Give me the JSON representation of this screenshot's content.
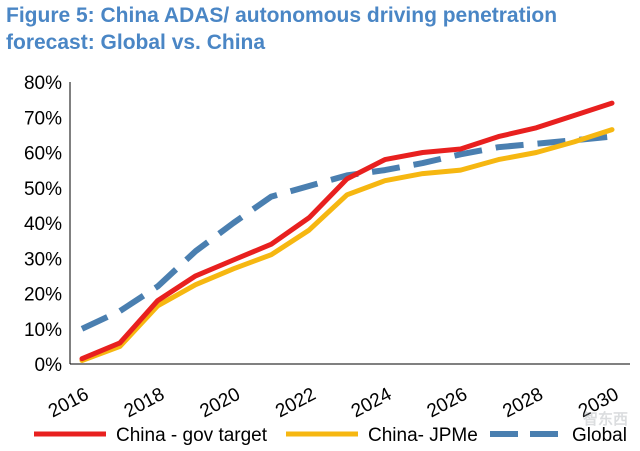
{
  "chart_data": {
    "type": "line",
    "title": "Figure 5: China ADAS/ autonomous driving penetration forecast: Global vs. China",
    "xlabel": "",
    "ylabel": "",
    "x": [
      2016,
      2017,
      2018,
      2019,
      2020,
      2021,
      2022,
      2023,
      2024,
      2025,
      2026,
      2027,
      2028,
      2029,
      2030
    ],
    "x_tick_labels": [
      "2016",
      "2018",
      "2020",
      "2022",
      "2024",
      "2026",
      "2028",
      "2030"
    ],
    "y_tick_labels": [
      "0%",
      "10%",
      "20%",
      "30%",
      "40%",
      "50%",
      "60%",
      "70%",
      "80%"
    ],
    "ylim": [
      0,
      80
    ],
    "xlim": [
      2016,
      2030
    ],
    "grid": false,
    "legend_position": "bottom",
    "series": [
      {
        "name": "China - gov target",
        "color": "#e8201f",
        "style": "solid",
        "values": [
          1.5,
          6,
          18,
          25,
          29.5,
          34,
          41.5,
          52.5,
          58,
          60,
          61,
          64.5,
          67,
          70.5,
          74
        ]
      },
      {
        "name": "China- JPMe",
        "color": "#f6b711",
        "style": "solid",
        "values": [
          1,
          5,
          16.5,
          22.5,
          27,
          31,
          38,
          48,
          52,
          54,
          55,
          58,
          60,
          63,
          66.5
        ]
      },
      {
        "name": "Global",
        "color": "#4a7fb0",
        "style": "dashed",
        "values": [
          10,
          15,
          22,
          32,
          40,
          47.5,
          50.5,
          53.5,
          55,
          57,
          59.5,
          61.5,
          62.5,
          63.5,
          64.5
        ]
      }
    ]
  },
  "watermark": {
    "text": "智东西"
  }
}
